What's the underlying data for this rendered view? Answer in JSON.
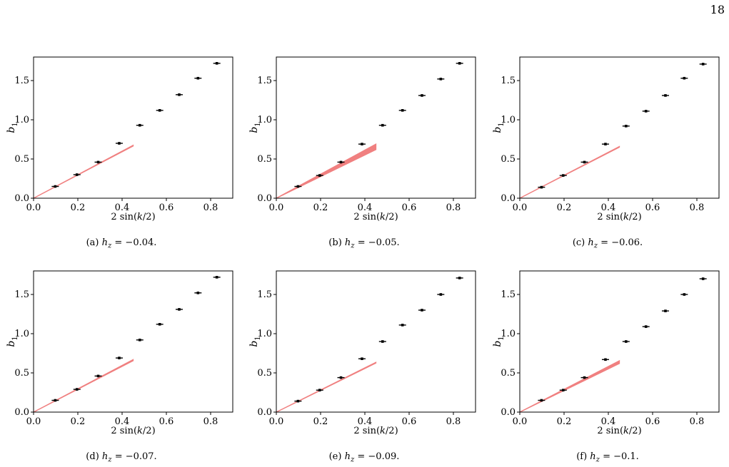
{
  "page_number": "18",
  "chart_data": [
    {
      "type": "scatter",
      "caption": "(a) hz = −0.04.",
      "caption_prefix": "(a) ",
      "caption_var": "h",
      "caption_sub": "z",
      "caption_suffix": " = −0.04.",
      "xlabel": "2 sin(k/2)",
      "ylabel": "b1",
      "xlim": [
        0,
        0.9
      ],
      "ylim": [
        0,
        1.8
      ],
      "xticks": [
        0.0,
        0.2,
        0.4,
        0.6,
        0.8
      ],
      "yticks": [
        0.0,
        0.5,
        1.0,
        1.5
      ],
      "xtick_labels": [
        "0.0",
        "0.2",
        "0.4",
        "0.6",
        "0.8"
      ],
      "ytick_labels": [
        "0.0",
        "0.5",
        "1.0",
        "1.5"
      ],
      "x": [
        0.098,
        0.196,
        0.292,
        0.387,
        0.48,
        0.57,
        0.658,
        0.743,
        0.828
      ],
      "y": [
        0.15,
        0.3,
        0.46,
        0.7,
        0.93,
        1.12,
        1.32,
        1.53,
        1.72
      ],
      "fit_line": {
        "x": [
          0,
          0.45
        ],
        "y_low": [
          0,
          0.665
        ],
        "y_high": [
          0,
          0.675
        ]
      },
      "fit_color": "#f08080",
      "marker_color": "#000000"
    },
    {
      "type": "scatter",
      "caption": "(b) hz = −0.05.",
      "caption_prefix": "(b) ",
      "caption_var": "h",
      "caption_sub": "z",
      "caption_suffix": " = −0.05.",
      "xlabel": "2 sin(k/2)",
      "ylabel": "b1",
      "xlim": [
        0,
        0.9
      ],
      "ylim": [
        0,
        1.8
      ],
      "xticks": [
        0.0,
        0.2,
        0.4,
        0.6,
        0.8
      ],
      "yticks": [
        0.0,
        0.5,
        1.0,
        1.5
      ],
      "xtick_labels": [
        "0.0",
        "0.2",
        "0.4",
        "0.6",
        "0.8"
      ],
      "ytick_labels": [
        "0.0",
        "0.5",
        "1.0",
        "1.5"
      ],
      "x": [
        0.098,
        0.196,
        0.292,
        0.387,
        0.48,
        0.57,
        0.658,
        0.743,
        0.828
      ],
      "y": [
        0.15,
        0.29,
        0.46,
        0.69,
        0.93,
        1.12,
        1.31,
        1.52,
        1.72
      ],
      "fit_line": {
        "x": [
          0,
          0.45
        ],
        "y_low": [
          0,
          0.62
        ],
        "y_high": [
          0,
          0.69
        ]
      },
      "fit_color": "#f08080",
      "marker_color": "#000000"
    },
    {
      "type": "scatter",
      "caption": "(c) hz = −0.06.",
      "caption_prefix": "(c) ",
      "caption_var": "h",
      "caption_sub": "z",
      "caption_suffix": " = −0.06.",
      "xlabel": "2 sin(k/2)",
      "ylabel": "b1",
      "xlim": [
        0,
        0.9
      ],
      "ylim": [
        0,
        1.8
      ],
      "xticks": [
        0.0,
        0.2,
        0.4,
        0.6,
        0.8
      ],
      "yticks": [
        0.0,
        0.5,
        1.0,
        1.5
      ],
      "xtick_labels": [
        "0.0",
        "0.2",
        "0.4",
        "0.6",
        "0.8"
      ],
      "ytick_labels": [
        "0.0",
        "0.5",
        "1.0",
        "1.5"
      ],
      "x": [
        0.098,
        0.196,
        0.292,
        0.387,
        0.48,
        0.57,
        0.658,
        0.743,
        0.828
      ],
      "y": [
        0.14,
        0.29,
        0.46,
        0.69,
        0.92,
        1.11,
        1.31,
        1.53,
        1.71
      ],
      "fit_line": {
        "x": [
          0,
          0.45
        ],
        "y_low": [
          0,
          0.65
        ],
        "y_high": [
          0,
          0.66
        ]
      },
      "fit_color": "#f08080",
      "marker_color": "#000000"
    },
    {
      "type": "scatter",
      "caption": "(d) hz = −0.07.",
      "caption_prefix": "(d) ",
      "caption_var": "h",
      "caption_sub": "z",
      "caption_suffix": " = −0.07.",
      "xlabel": "2 sin(k/2)",
      "ylabel": "b1",
      "xlim": [
        0,
        0.9
      ],
      "ylim": [
        0,
        1.8
      ],
      "xticks": [
        0.0,
        0.2,
        0.4,
        0.6,
        0.8
      ],
      "yticks": [
        0.0,
        0.5,
        1.0,
        1.5
      ],
      "xtick_labels": [
        "0.0",
        "0.2",
        "0.4",
        "0.6",
        "0.8"
      ],
      "ytick_labels": [
        "0.0",
        "0.5",
        "1.0",
        "1.5"
      ],
      "x": [
        0.098,
        0.196,
        0.292,
        0.387,
        0.48,
        0.57,
        0.658,
        0.743,
        0.828
      ],
      "y": [
        0.15,
        0.29,
        0.46,
        0.69,
        0.92,
        1.12,
        1.31,
        1.52,
        1.72
      ],
      "fit_line": {
        "x": [
          0,
          0.45
        ],
        "y_low": [
          0,
          0.655
        ],
        "y_high": [
          0,
          0.67
        ]
      },
      "fit_color": "#f08080",
      "marker_color": "#000000"
    },
    {
      "type": "scatter",
      "caption": "(e) hz = −0.09.",
      "caption_prefix": "(e) ",
      "caption_var": "h",
      "caption_sub": "z",
      "caption_suffix": " = −0.09.",
      "xlabel": "2 sin(k/2)",
      "ylabel": "b1",
      "xlim": [
        0,
        0.9
      ],
      "ylim": [
        0,
        1.8
      ],
      "xticks": [
        0.0,
        0.2,
        0.4,
        0.6,
        0.8
      ],
      "yticks": [
        0.0,
        0.5,
        1.0,
        1.5
      ],
      "xtick_labels": [
        "0.0",
        "0.2",
        "0.4",
        "0.6",
        "0.8"
      ],
      "ytick_labels": [
        "0.0",
        "0.5",
        "1.0",
        "1.5"
      ],
      "x": [
        0.098,
        0.196,
        0.292,
        0.387,
        0.48,
        0.57,
        0.658,
        0.743,
        0.828
      ],
      "y": [
        0.14,
        0.28,
        0.44,
        0.68,
        0.9,
        1.11,
        1.3,
        1.5,
        1.71
      ],
      "fit_line": {
        "x": [
          0,
          0.45
        ],
        "y_low": [
          0,
          0.625
        ],
        "y_high": [
          0,
          0.635
        ]
      },
      "fit_color": "#f08080",
      "marker_color": "#000000"
    },
    {
      "type": "scatter",
      "caption": "(f) hz = −0.1.",
      "caption_prefix": "(f) ",
      "caption_var": "h",
      "caption_sub": "z",
      "caption_suffix": " = −0.1.",
      "xlabel": "2 sin(k/2)",
      "ylabel": "b1",
      "xlim": [
        0,
        0.9
      ],
      "ylim": [
        0,
        1.8
      ],
      "xticks": [
        0.0,
        0.2,
        0.4,
        0.6,
        0.8
      ],
      "yticks": [
        0.0,
        0.5,
        1.0,
        1.5
      ],
      "xtick_labels": [
        "0.0",
        "0.2",
        "0.4",
        "0.6",
        "0.8"
      ],
      "ytick_labels": [
        "0.0",
        "0.5",
        "1.0",
        "1.5"
      ],
      "x": [
        0.098,
        0.196,
        0.292,
        0.387,
        0.48,
        0.57,
        0.658,
        0.743,
        0.828
      ],
      "y": [
        0.15,
        0.28,
        0.44,
        0.67,
        0.9,
        1.09,
        1.29,
        1.5,
        1.7
      ],
      "fit_line": {
        "x": [
          0,
          0.45
        ],
        "y_low": [
          0,
          0.62
        ],
        "y_high": [
          0,
          0.655
        ]
      },
      "fit_color": "#f08080",
      "marker_color": "#000000"
    }
  ]
}
